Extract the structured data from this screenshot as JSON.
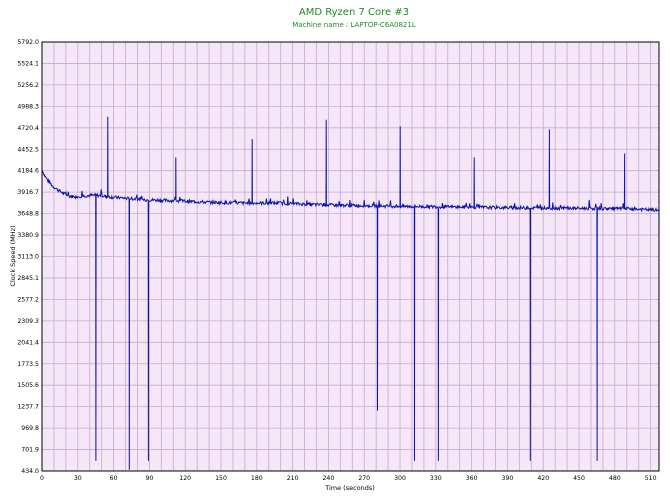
{
  "chart_data": {
    "type": "line",
    "title": "AMD Ryzen 7 Core #3",
    "subtitle": "Machine name : LAPTOP-C6A0821L",
    "xlabel": "Time (seconds)",
    "ylabel": "Clock Speed (MHz)",
    "xlim": [
      0,
      517
    ],
    "ylim": [
      434.0,
      5792.0
    ],
    "x_ticks": [
      "0",
      "30",
      "60",
      "90",
      "120",
      "150",
      "180",
      "210",
      "240",
      "270",
      "300",
      "330",
      "360",
      "390",
      "420",
      "450",
      "480",
      "510"
    ],
    "y_ticks": [
      "5792.0",
      "5524.1",
      "5256.2",
      "4988.3",
      "4720.4",
      "4452.5",
      "4184.6",
      "3916.7",
      "3648.8",
      "3380.9",
      "3113.0",
      "2845.1",
      "2577.2",
      "2309.3",
      "2041.4",
      "1773.5",
      "1505.6",
      "1237.7",
      "969.8",
      "701.9",
      "434.0"
    ],
    "grid": true,
    "legend": "none",
    "colors": {
      "line": "#0a14a8",
      "plot_bg": "#f5e6f8",
      "grid": "#c6aacf",
      "title": "#1f8a1f"
    },
    "series": [
      {
        "baseline": [
          [
            0,
            4200
          ],
          [
            2,
            4130
          ],
          [
            5,
            4060
          ],
          [
            9,
            3990
          ],
          [
            13,
            3950
          ],
          [
            18,
            3900
          ],
          [
            22,
            3870
          ],
          [
            28,
            3860
          ],
          [
            35,
            3870
          ],
          [
            45,
            3880
          ],
          [
            55,
            3860
          ],
          [
            70,
            3840
          ],
          [
            90,
            3820
          ],
          [
            110,
            3810
          ],
          [
            140,
            3790
          ],
          [
            170,
            3780
          ],
          [
            200,
            3780
          ],
          [
            230,
            3760
          ],
          [
            260,
            3750
          ],
          [
            300,
            3740
          ],
          [
            350,
            3730
          ],
          [
            400,
            3720
          ],
          [
            450,
            3715
          ],
          [
            490,
            3710
          ],
          [
            517,
            3690
          ]
        ],
        "spikes": [
          [
            55,
            4860
          ],
          [
            112,
            4350
          ],
          [
            176,
            4580
          ],
          [
            238,
            4820
          ],
          [
            300,
            4740
          ],
          [
            362,
            4350
          ],
          [
            425,
            4700
          ],
          [
            488,
            4400
          ]
        ],
        "dips": [
          [
            45,
            560
          ],
          [
            73,
            450
          ],
          [
            89,
            560
          ],
          [
            281,
            1190
          ],
          [
            312,
            560
          ],
          [
            332,
            560
          ],
          [
            409,
            560
          ],
          [
            465,
            560
          ]
        ]
      }
    ]
  }
}
